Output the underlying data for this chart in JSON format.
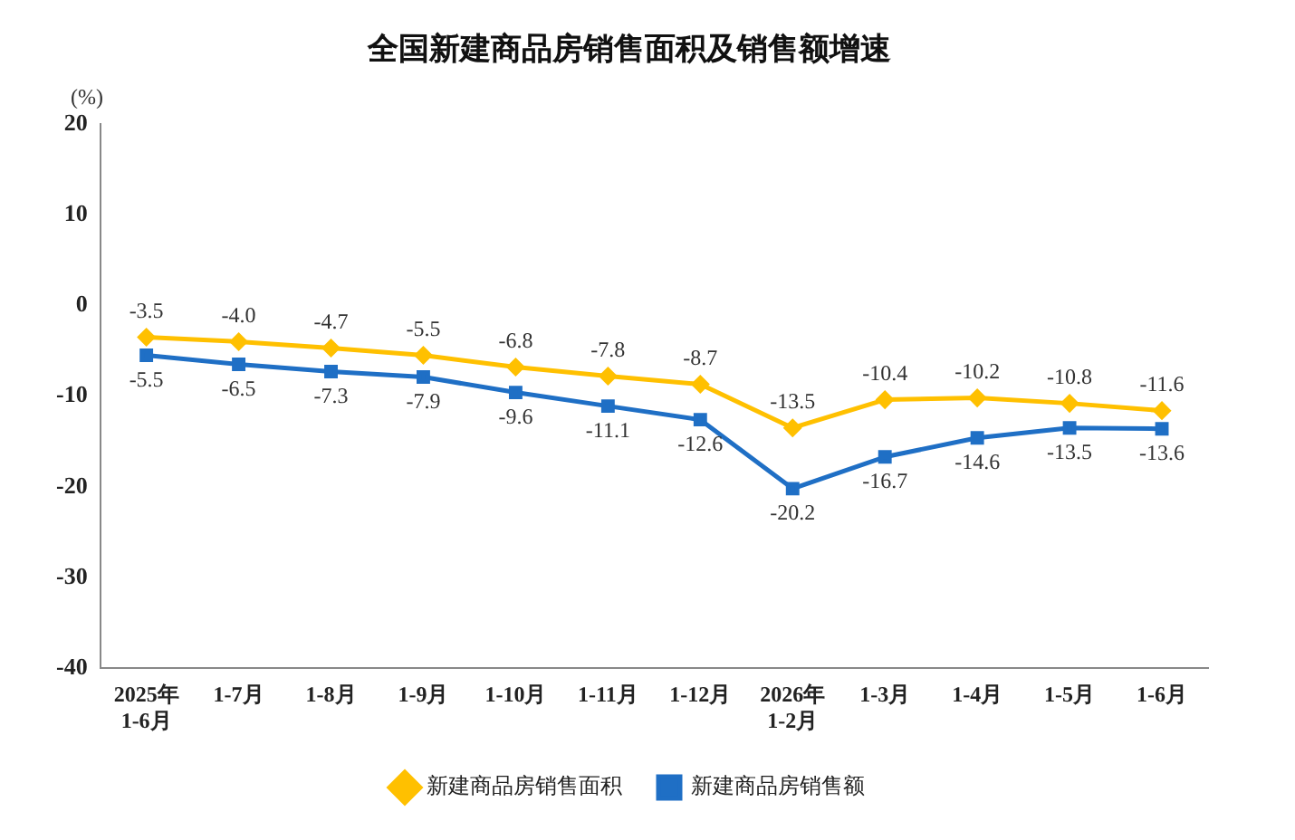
{
  "chart_data": {
    "type": "line",
    "title": "全国新建商品房销售面积及销售额增速",
    "ylabel": "(%)",
    "categories": [
      "2025年\n1-6月",
      "1-7月",
      "1-8月",
      "1-9月",
      "1-10月",
      "1-11月",
      "1-12月",
      "2026年\n1-2月",
      "1-3月",
      "1-4月",
      "1-5月",
      "1-6月"
    ],
    "series": [
      {
        "name": "新建商品房销售面积",
        "color": "#ffc000",
        "marker": "diamond",
        "values": [
          -3.5,
          -4.0,
          -4.7,
          -5.5,
          -6.8,
          -7.8,
          -8.7,
          -13.5,
          -10.4,
          -10.2,
          -10.8,
          -11.6
        ],
        "value_labels": [
          "-3.5",
          "-4.0",
          "-4.7",
          "-5.5",
          "-6.8",
          "-7.8",
          "-8.7",
          "-13.5",
          "-10.4",
          "-10.2",
          "-10.8",
          "-11.6"
        ]
      },
      {
        "name": "新建商品房销售额",
        "color": "#1f6fc5",
        "marker": "square",
        "values": [
          -5.5,
          -6.5,
          -7.3,
          -7.9,
          -9.6,
          -11.1,
          -12.6,
          -20.2,
          -16.7,
          -14.6,
          -13.5,
          -13.6
        ],
        "value_labels": [
          "-5.5",
          "-6.5",
          "-7.3",
          "-7.9",
          "-9.6",
          "-11.1",
          "-12.6",
          "-20.2",
          "-16.7",
          "-14.6",
          "-13.5",
          "-13.6"
        ]
      }
    ],
    "ylim": [
      -40,
      20
    ],
    "yticks": [
      -40,
      -30,
      -20,
      -10,
      0,
      10,
      20
    ],
    "grid": false,
    "legend": "bottom",
    "line_style": "solid"
  }
}
